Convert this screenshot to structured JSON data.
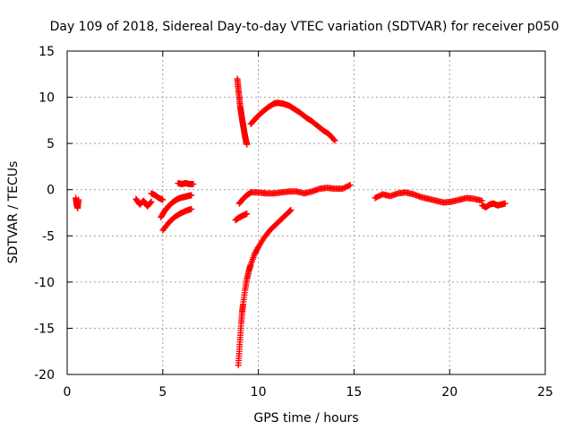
{
  "chart_data": {
    "type": "scatter",
    "title": "Day 109 of 2018, Sidereal Day-to-day VTEC variation (SDTVAR) for receiver p050",
    "xlabel": "GPS time / hours",
    "ylabel": "SDTVAR / TECUs",
    "xlim": [
      0,
      25
    ],
    "ylim": [
      -20,
      15
    ],
    "x_ticks": [
      0,
      5,
      10,
      15,
      20,
      25
    ],
    "y_ticks": [
      -20,
      -15,
      -10,
      -5,
      0,
      5,
      10,
      15
    ],
    "grid": true,
    "marker": "+",
    "series_color": "#ff0000",
    "series": [
      {
        "segments": [
          {
            "x": [
              0.45,
              0.5,
              0.55,
              0.6
            ],
            "y": [
              -0.9,
              -1.6,
              -2.0,
              -1.1
            ]
          },
          {
            "x": [
              3.6,
              3.8,
              4.0,
              4.2,
              4.4
            ],
            "y": [
              -1.0,
              -1.6,
              -1.2,
              -1.8,
              -1.3
            ]
          },
          {
            "x": [
              4.4,
              4.6,
              4.8,
              5.0
            ],
            "y": [
              -0.4,
              -0.6,
              -0.9,
              -1.1
            ]
          },
          {
            "x": [
              4.9,
              5.1,
              5.3,
              5.5,
              5.7,
              5.9,
              6.1,
              6.3,
              6.5
            ],
            "y": [
              -3.0,
              -2.3,
              -1.8,
              -1.4,
              -1.1,
              -0.9,
              -0.8,
              -0.7,
              -0.6
            ]
          },
          {
            "x": [
              5.0,
              5.3,
              5.6,
              5.9,
              6.2,
              6.5
            ],
            "y": [
              -4.4,
              -3.6,
              -3.0,
              -2.6,
              -2.3,
              -2.1
            ]
          },
          {
            "x": [
              5.8,
              6.0,
              6.2,
              6.4,
              6.6
            ],
            "y": [
              0.7,
              0.6,
              0.7,
              0.6,
              0.6
            ]
          },
          {
            "x": [
              8.9,
              8.95,
              9.0,
              9.05,
              9.1,
              9.15,
              9.2,
              9.25,
              9.3,
              9.35,
              9.4
            ],
            "y": [
              12.0,
              11.0,
              10.0,
              9.0,
              8.3,
              7.6,
              7.0,
              6.4,
              5.8,
              5.3,
              4.9
            ]
          },
          {
            "x": [
              8.8,
              9.0,
              9.2,
              9.4
            ],
            "y": [
              -3.3,
              -3.0,
              -2.8,
              -2.6
            ]
          },
          {
            "x": [
              9.0,
              9.2,
              9.4,
              9.6
            ],
            "y": [
              -1.5,
              -1.0,
              -0.6,
              -0.3
            ]
          },
          {
            "x": [
              8.95,
              9.0,
              9.05,
              9.1,
              9.15,
              9.2,
              9.3,
              9.4,
              9.5,
              9.6,
              9.8,
              10.0,
              10.3,
              10.6,
              10.9,
              11.2,
              11.5,
              11.7
            ],
            "y": [
              -19.0,
              -17.5,
              -16.0,
              -14.5,
              -13.3,
              -12.4,
              -10.9,
              -9.7,
              -8.8,
              -8.1,
              -7.0,
              -6.2,
              -5.2,
              -4.4,
              -3.8,
              -3.2,
              -2.6,
              -2.2
            ]
          },
          {
            "x": [
              9.6,
              9.9,
              10.2,
              10.5,
              10.8,
              11.0,
              11.3,
              11.6,
              11.9,
              12.2,
              12.5,
              12.8,
              13.1,
              13.4,
              13.7,
              14.0
            ],
            "y": [
              7.1,
              7.8,
              8.4,
              8.9,
              9.3,
              9.4,
              9.3,
              9.1,
              8.7,
              8.3,
              7.8,
              7.4,
              6.9,
              6.4,
              6.0,
              5.3
            ]
          },
          {
            "x": [
              9.6,
              10.0,
              10.4,
              10.8,
              11.2,
              11.6,
              12.0,
              12.4,
              12.8,
              13.2,
              13.6,
              14.0,
              14.4,
              14.8
            ],
            "y": [
              -0.3,
              -0.3,
              -0.4,
              -0.4,
              -0.3,
              -0.2,
              -0.2,
              -0.4,
              -0.2,
              0.1,
              0.2,
              0.1,
              0.1,
              0.5
            ]
          },
          {
            "x": [
              16.1,
              16.5,
              16.9,
              17.3,
              17.7,
              18.1,
              18.5,
              18.9,
              19.3,
              19.7,
              20.1,
              20.5,
              20.9,
              21.3,
              21.7
            ],
            "y": [
              -0.9,
              -0.5,
              -0.7,
              -0.4,
              -0.3,
              -0.5,
              -0.8,
              -1.0,
              -1.2,
              -1.4,
              -1.3,
              -1.1,
              -0.9,
              -1.0,
              -1.2
            ]
          },
          {
            "x": [
              21.7,
              21.9,
              22.1,
              22.3,
              22.5,
              22.7,
              22.9
            ],
            "y": [
              -1.7,
              -1.9,
              -1.6,
              -1.5,
              -1.7,
              -1.6,
              -1.5
            ]
          }
        ]
      }
    ]
  }
}
